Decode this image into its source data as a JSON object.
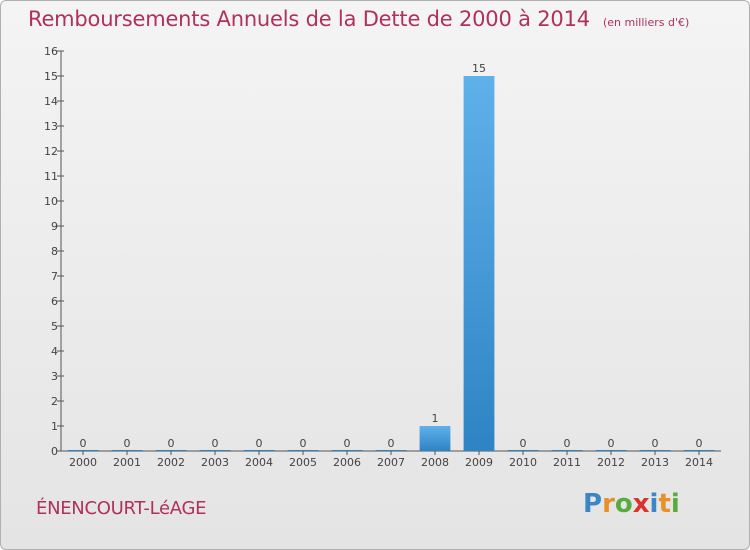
{
  "title": "Remboursements Annuels de la Dette de 2000 à 2014",
  "subtitle": "(en milliers d'€)",
  "commune": "ÉNENCOURT-LéAGE",
  "logo": {
    "text": "Proxiti",
    "letters": [
      {
        "char": "P",
        "color": "#3d86c6"
      },
      {
        "char": "r",
        "color": "#e8902a"
      },
      {
        "char": "o",
        "color": "#5aab3e"
      },
      {
        "char": "x",
        "color": "#d8342c"
      },
      {
        "char": "i",
        "color": "#3d86c6"
      },
      {
        "char": "t",
        "color": "#e8902a"
      },
      {
        "char": "i",
        "color": "#5aab3e"
      }
    ]
  },
  "colors": {
    "bar": "#2e83c4",
    "bar_light": "#5fb1ea",
    "axis": "#555555",
    "title": "#b0305e"
  },
  "chart_data": {
    "type": "bar",
    "categories": [
      "2000",
      "2001",
      "2002",
      "2003",
      "2004",
      "2005",
      "2006",
      "2007",
      "2008",
      "2009",
      "2010",
      "2011",
      "2012",
      "2013",
      "2014"
    ],
    "values": [
      0,
      0,
      0,
      0,
      0,
      0,
      0,
      0,
      1,
      15,
      0,
      0,
      0,
      0,
      0
    ],
    "title": "Remboursements Annuels de la Dette de 2000 à 2014",
    "xlabel": "",
    "ylabel": "",
    "ylim": [
      0,
      16
    ],
    "yticks": [
      0,
      1,
      2,
      3,
      4,
      5,
      6,
      7,
      8,
      9,
      10,
      11,
      12,
      13,
      14,
      15,
      16
    ],
    "grid": false,
    "legend": "none"
  }
}
